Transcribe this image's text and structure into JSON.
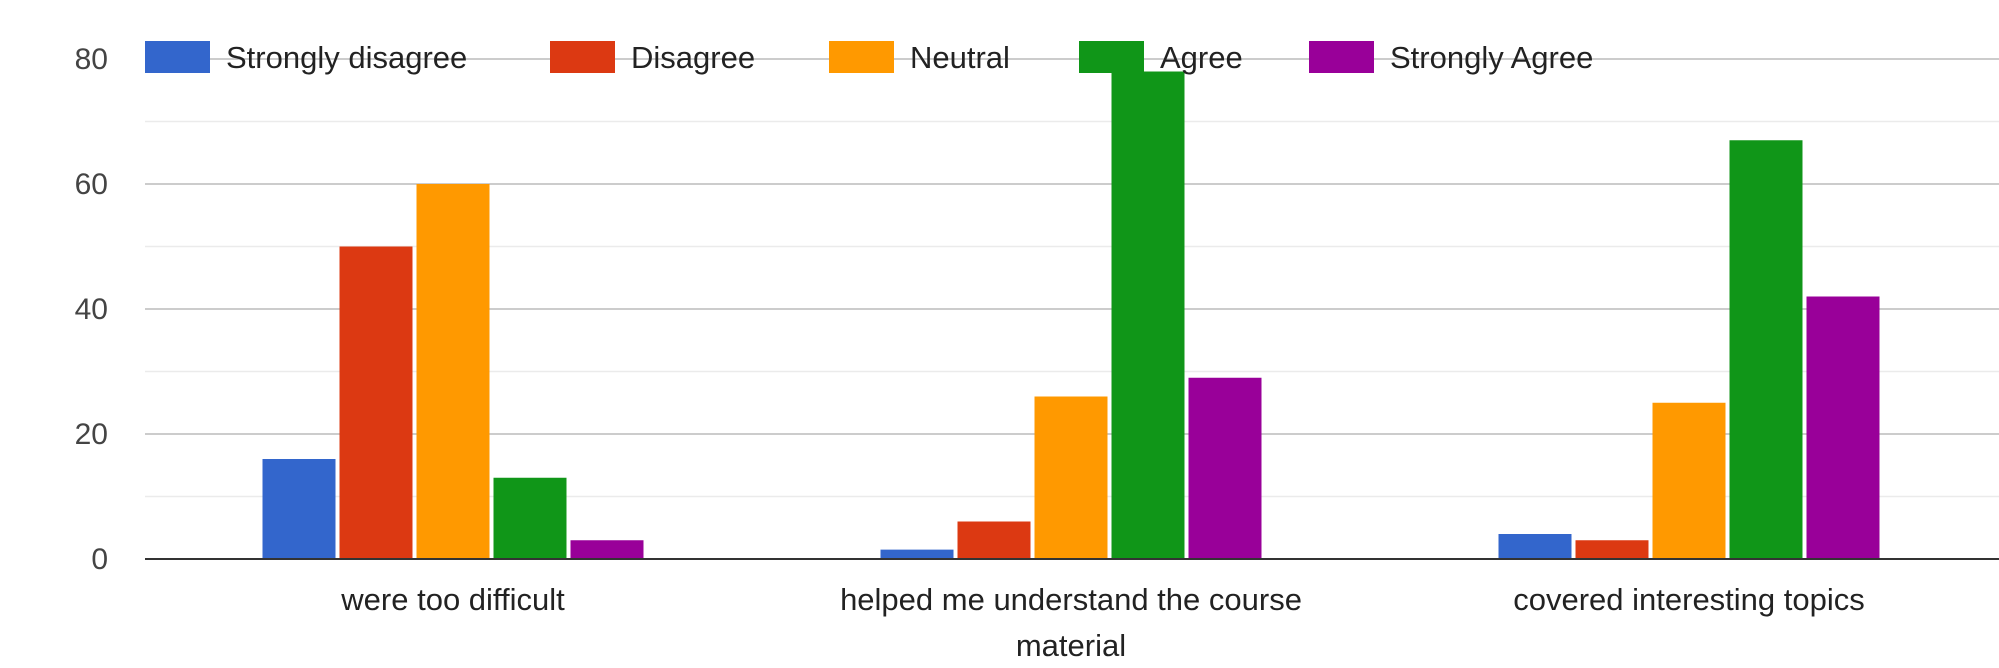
{
  "chart_data": {
    "type": "bar",
    "categories": [
      [
        "were too difficult"
      ],
      [
        "helped me understand the course",
        "material"
      ],
      [
        "covered interesting topics"
      ]
    ],
    "series": [
      {
        "name": "Strongly disagree",
        "color": "#3366cc",
        "values": [
          16,
          1.5,
          4
        ]
      },
      {
        "name": "Disagree",
        "color": "#dc3912",
        "values": [
          50,
          6,
          3
        ]
      },
      {
        "name": "Neutral",
        "color": "#ff9900",
        "values": [
          60,
          26,
          25
        ]
      },
      {
        "name": "Agree",
        "color": "#109618",
        "values": [
          13,
          78,
          67
        ]
      },
      {
        "name": "Strongly Agree",
        "color": "#990099",
        "values": [
          3,
          29,
          42
        ]
      }
    ],
    "ylim": [
      0,
      80
    ],
    "yticks": [
      0,
      20,
      40,
      60,
      80
    ],
    "grid": true,
    "legend_position": "top"
  }
}
